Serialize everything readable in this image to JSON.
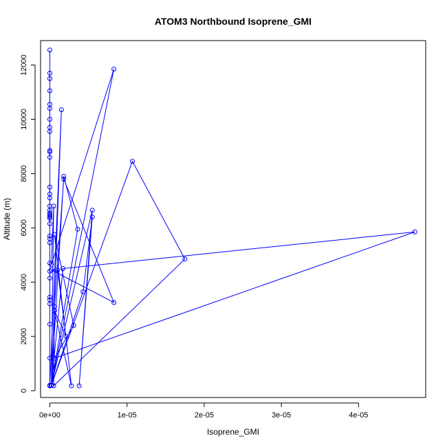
{
  "chart_data": {
    "type": "line",
    "title": "ATOM3 Northbound Isoprene_GMI",
    "xlabel": "Isoprene_GMI",
    "ylabel": "Altitude (m)",
    "xlim": [
      -1.2e-06,
      4.87e-05
    ],
    "ylim": [
      -250,
      12900
    ],
    "x_ticks": [
      0,
      1e-05,
      2e-05,
      3e-05,
      4e-05
    ],
    "x_tick_labels": [
      "0e+00",
      "1e-05",
      "2e-05",
      "3e-05",
      "4e-05"
    ],
    "y_ticks": [
      0,
      2000,
      4000,
      6000,
      8000,
      10000,
      12000
    ],
    "y_tick_labels": [
      "0",
      "2000",
      "4000",
      "6000",
      "8000",
      "10000",
      "12000"
    ],
    "grid": false,
    "markers": "open-circle",
    "series": [
      {
        "color": "#0000ff",
        "points": [
          [
            0,
            180
          ],
          [
            0,
            12550
          ],
          [
            0,
            11700
          ],
          [
            0,
            11500
          ],
          [
            0,
            11050
          ],
          [
            0,
            10550
          ],
          [
            0,
            10400
          ],
          [
            0,
            10000
          ],
          [
            0,
            9700
          ],
          [
            0,
            9550
          ],
          [
            0,
            8850
          ],
          [
            0,
            8800
          ],
          [
            0,
            8600
          ],
          [
            0,
            7500
          ],
          [
            0,
            7250
          ],
          [
            0,
            7100
          ],
          [
            0,
            6800
          ],
          [
            0,
            6650
          ],
          [
            0,
            6550
          ],
          [
            0,
            6500
          ],
          [
            0,
            6450
          ],
          [
            0,
            6400
          ],
          [
            0,
            6350
          ],
          [
            0,
            6150
          ],
          [
            0,
            5700
          ],
          [
            0,
            5600
          ],
          [
            0,
            5450
          ],
          [
            0,
            4700
          ],
          [
            0,
            4400
          ],
          [
            0,
            4150
          ],
          [
            0,
            3450
          ],
          [
            0,
            3350
          ],
          [
            0,
            3200
          ],
          [
            0,
            2450
          ],
          [
            0,
            1200
          ],
          [
            0,
            200
          ],
          [
            0,
            180
          ],
          [
            1.5e-06,
            10350
          ],
          [
            2e-07,
            200
          ],
          [
            1.8e-06,
            7900
          ],
          [
            3.6e-06,
            5950
          ],
          [
            2e-07,
            200
          ],
          [
            5e-07,
            6800
          ],
          [
            2e-07,
            4650
          ],
          [
            8.3e-06,
            11850
          ],
          [
            2e-07,
            200
          ],
          [
            5.5e-06,
            6650
          ],
          [
            3.8e-06,
            180
          ],
          [
            5.5e-06,
            6400
          ],
          [
            4.3e-06,
            3650
          ],
          [
            2e-07,
            200
          ],
          [
            1.07e-05,
            8450
          ],
          [
            1.75e-05,
            4850
          ],
          [
            5e-07,
            180
          ],
          [
            6e-07,
            3100
          ],
          [
            1.8e-06,
            7800
          ],
          [
            8.3e-06,
            3250
          ],
          [
            2e-07,
            4450
          ],
          [
            1e-06,
            4450
          ],
          [
            2.1e-06,
            2000
          ],
          [
            6e-07,
            2950
          ],
          [
            2.8e-06,
            180
          ],
          [
            6e-07,
            5750
          ],
          [
            3.1e-06,
            2400
          ],
          [
            6e-07,
            1200
          ],
          [
            4.73e-05,
            5850
          ],
          [
            1.7e-06,
            4500
          ],
          [
            2e-07,
            200
          ]
        ]
      }
    ]
  }
}
